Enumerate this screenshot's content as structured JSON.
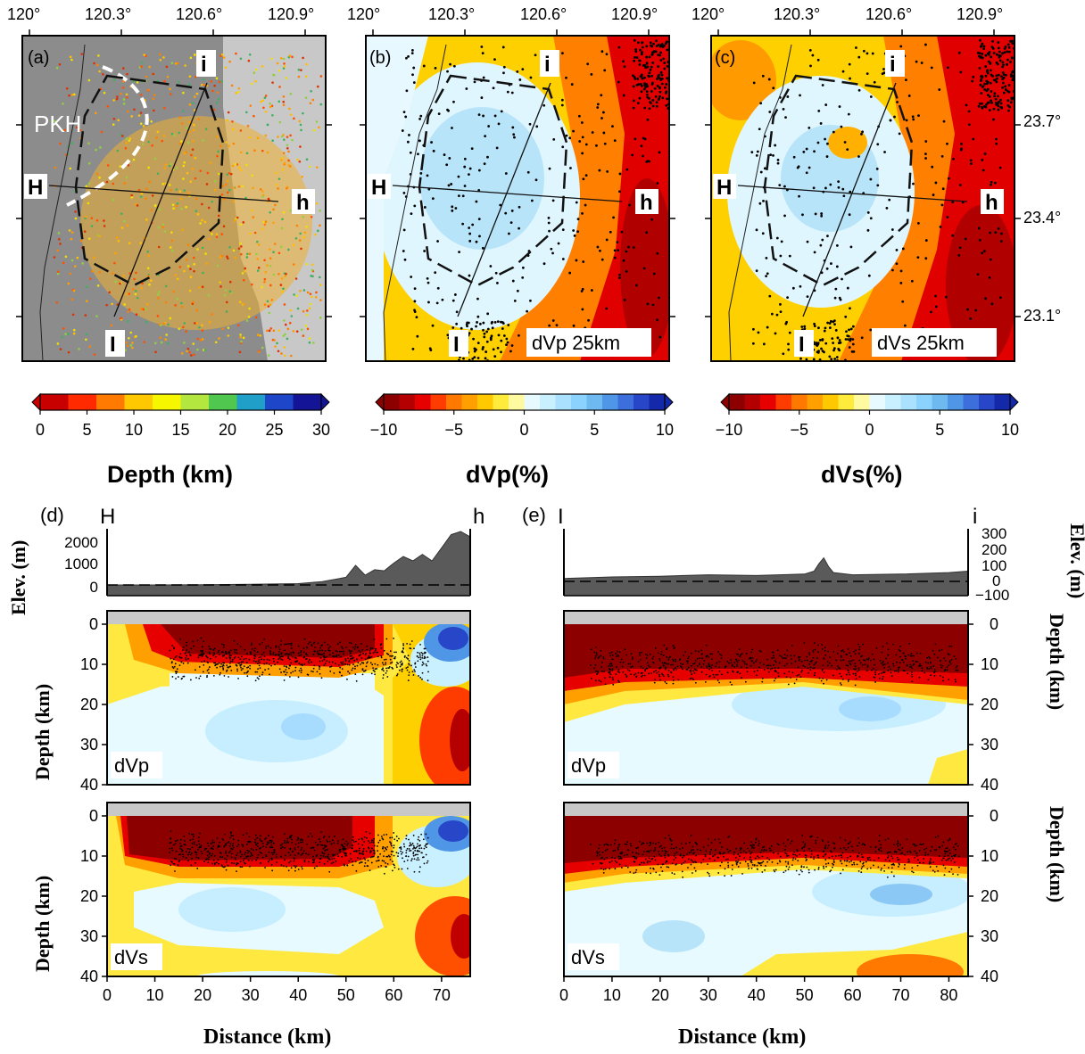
{
  "figure": {
    "panel_labels": [
      "(a)",
      "(b)",
      "(c)",
      "(d)",
      "(e)"
    ],
    "map_lon_ticks": [
      "120°",
      "120.3°",
      "120.6°",
      "120.9°"
    ],
    "map_lat_ticks": [
      "23.7°",
      "23.4°",
      "23.1°"
    ],
    "map_a_text": "PKH",
    "map_b_text": "dVp 25km",
    "map_c_text": "dVs 25km",
    "profile_labels": {
      "H": "H",
      "h": "h",
      "I": "I",
      "i": "i"
    }
  },
  "colorbars": [
    {
      "label": "Depth (km)",
      "ticks": [
        "0",
        "5",
        "10",
        "15",
        "20",
        "25",
        "30"
      ],
      "colors": [
        "#c80000",
        "#ff2a00",
        "#ff7a00",
        "#ffc800",
        "#f6f600",
        "#b4e640",
        "#50c850",
        "#20a0c8",
        "#1e46c8",
        "#141496"
      ]
    },
    {
      "label": "dVp(%)",
      "ticks": [
        "−10",
        "−5",
        "0",
        "5",
        "10"
      ],
      "colors": [
        "#8c0000",
        "#b40000",
        "#e60000",
        "#ff3c00",
        "#ff7800",
        "#ffa000",
        "#ffc800",
        "#ffeb3c",
        "#fffaa0",
        "#e6faff",
        "#c8f0ff",
        "#aae1ff",
        "#8cd2ff",
        "#6eb9f0",
        "#5096e6",
        "#3c6edc",
        "#2846c8",
        "#1428aa"
      ]
    },
    {
      "label": "dVs(%)",
      "ticks": [
        "−10",
        "−5",
        "0",
        "5",
        "10"
      ],
      "colors": [
        "#8c0000",
        "#b40000",
        "#e60000",
        "#ff3c00",
        "#ff7800",
        "#ffa000",
        "#ffc800",
        "#ffeb3c",
        "#fffaa0",
        "#e6faff",
        "#c8f0ff",
        "#aae1ff",
        "#8cd2ff",
        "#6eb9f0",
        "#5096e6",
        "#3c6edc",
        "#2846c8",
        "#1428aa"
      ]
    }
  ],
  "sections": {
    "d": {
      "start": "H",
      "end": "h",
      "dist_ticks": [
        "0",
        "10",
        "20",
        "30",
        "40",
        "50",
        "60",
        "70"
      ],
      "elev_ticks": [
        "0",
        "1000",
        "2000"
      ]
    },
    "e": {
      "start": "I",
      "end": "i",
      "dist_ticks": [
        "0",
        "10",
        "20",
        "30",
        "40",
        "50",
        "60",
        "70",
        "80"
      ],
      "elev_ticks": [
        "−100",
        "0",
        "100",
        "200",
        "300"
      ]
    },
    "elev_label": "Elev. (m)",
    "depth_label": "Depth (km)",
    "depth_ticks": [
      "0",
      "10",
      "20",
      "30",
      "40"
    ],
    "distance_label": "Distance (km)",
    "dvp_tag": "dVp",
    "dvs_tag": "dVs"
  },
  "chart_data": [
    {
      "type": "line",
      "title": "",
      "xlabel": "Distance (km)",
      "ylabel": "Elev. (m)",
      "ylim": [
        -300,
        2600
      ],
      "series": [
        {
          "x": [
            0,
            10,
            20,
            30,
            40,
            45,
            50,
            52,
            54,
            56,
            58,
            60,
            62,
            64,
            66,
            68,
            70,
            72,
            74,
            76
          ],
          "values": [
            0,
            0,
            10,
            30,
            60,
            150,
            350,
            900,
            450,
            700,
            650,
            1000,
            1300,
            1100,
            1400,
            1100,
            1700,
            2300,
            2450,
            2200
          ]
        }
      ]
    },
    {
      "type": "line",
      "title": "",
      "xlabel": "Distance (km)",
      "ylabel": "Elev. (m)",
      "ylim": [
        -100,
        300
      ],
      "series": [
        {
          "x": [
            0,
            10,
            20,
            30,
            40,
            50,
            52,
            53,
            54,
            55,
            56,
            60,
            70,
            80,
            84
          ],
          "values": [
            20,
            30,
            35,
            45,
            40,
            50,
            70,
            120,
            160,
            100,
            60,
            45,
            50,
            60,
            70
          ]
        }
      ]
    }
  ]
}
